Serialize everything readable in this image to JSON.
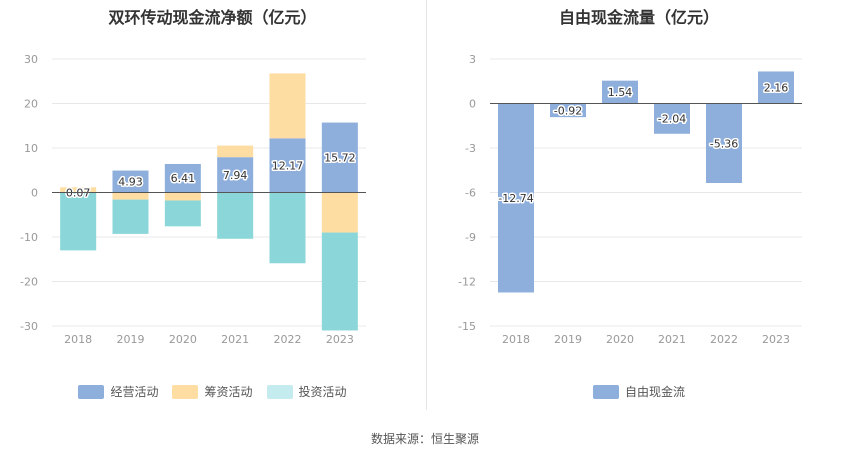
{
  "source_text": "数据来源：恒生聚源",
  "colors": {
    "operating": "#8eaedc",
    "financing": "#fedda2",
    "investing": "#8ad6d9",
    "free": "#8eaedc",
    "grid": "#e8e8e8",
    "zero": "#555555"
  },
  "chart_data": [
    {
      "type": "bar",
      "stacked": true,
      "title": "双环传动现金流净额（亿元）",
      "categories": [
        "2018",
        "2019",
        "2020",
        "2021",
        "2022",
        "2023"
      ],
      "ylim": [
        -30,
        30
      ],
      "yticks": [
        30,
        20,
        10,
        0,
        -10,
        -20,
        -30
      ],
      "series": [
        {
          "name": "经营活动",
          "values": [
            0.07,
            4.93,
            6.41,
            7.94,
            12.17,
            15.72
          ],
          "color": "#8eaedc"
        },
        {
          "name": "筹资活动",
          "values": [
            1.1,
            -1.6,
            -1.8,
            2.6,
            14.6,
            -9.0
          ],
          "color": "#fedda2"
        },
        {
          "name": "投资活动",
          "values": [
            -13.0,
            -7.7,
            -5.8,
            -10.4,
            -15.9,
            -22.0
          ],
          "color": "#8ad6d9"
        }
      ],
      "data_labels": [
        "0.07",
        "4.93",
        "6.41",
        "7.94",
        "12.17",
        "15.72"
      ],
      "legend": [
        "经营活动",
        "筹资活动",
        "投资活动"
      ],
      "legend_position": "bottom",
      "grid": true
    },
    {
      "type": "bar",
      "title": "自由现金流量（亿元）",
      "categories": [
        "2018",
        "2019",
        "2020",
        "2021",
        "2022",
        "2023"
      ],
      "ylim": [
        -15,
        3
      ],
      "yticks": [
        3,
        0,
        -3,
        -6,
        -9,
        -12,
        -15
      ],
      "series": [
        {
          "name": "自由现金流",
          "values": [
            -12.74,
            -0.92,
            1.54,
            -2.04,
            -5.36,
            2.16
          ],
          "color": "#8eaedc"
        }
      ],
      "data_labels": [
        "-12.74",
        "-0.92",
        "1.54",
        "-2.04",
        "-5.36",
        "2.16"
      ],
      "legend": [
        "自由现金流"
      ],
      "legend_position": "bottom",
      "grid": true
    }
  ]
}
